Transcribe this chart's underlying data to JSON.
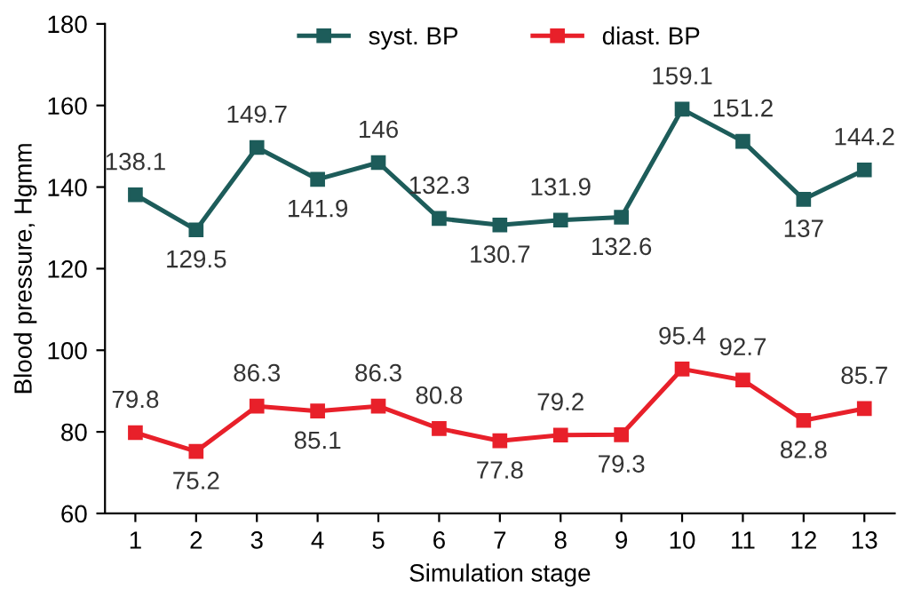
{
  "chart_data": {
    "type": "line",
    "categories": [
      "1",
      "2",
      "3",
      "4",
      "5",
      "6",
      "7",
      "8",
      "9",
      "10",
      "11",
      "12",
      "13"
    ],
    "series": [
      {
        "name": "syst. BP",
        "color": "#1d5c5a",
        "values": [
          138.1,
          129.5,
          149.7,
          141.9,
          146,
          132.3,
          130.7,
          131.9,
          132.6,
          159.1,
          151.2,
          137,
          144.2
        ]
      },
      {
        "name": "diast. BP",
        "color": "#e8202a",
        "values": [
          79.8,
          75.2,
          86.3,
          85.1,
          86.3,
          80.8,
          77.8,
          79.2,
          79.3,
          95.4,
          92.7,
          82.8,
          85.7
        ]
      }
    ],
    "xlabel": "Simulation stage",
    "ylabel": "Blood pressure, Hgmm",
    "ylim": [
      60,
      180
    ],
    "yticks": [
      60,
      80,
      100,
      120,
      140,
      160,
      180
    ],
    "grid": false,
    "legend": "top",
    "marker": "square",
    "line_style": "solid",
    "data_labels": true
  }
}
